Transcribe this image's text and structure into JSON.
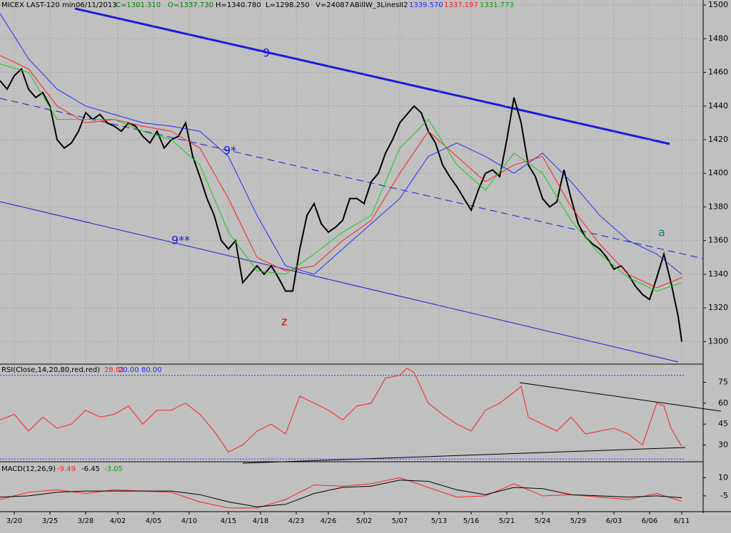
{
  "chart_data": [
    {
      "type": "line",
      "title": "MICEX LAST-120 min",
      "header": [
        "06/11/2013",
        "C=1301.310",
        "O=1337.730",
        "H=1340.780",
        "L=1298.250",
        "V=24087",
        "ABillW_3LinesII2",
        "1339.570",
        "1337.197",
        "1331.773"
      ],
      "annotations": [
        "9",
        "9*",
        "9**",
        "z",
        "a"
      ],
      "xlim": [
        0,
        197
      ],
      "xticks": [
        {
          "value": 4,
          "label": "3/20"
        },
        {
          "value": 14,
          "label": "3/25"
        },
        {
          "value": 24,
          "label": "3/28"
        },
        {
          "value": 33,
          "label": "4/02"
        },
        {
          "value": 43,
          "label": "4/05"
        },
        {
          "value": 53,
          "label": "4/10"
        },
        {
          "value": 64,
          "label": "4/15"
        },
        {
          "value": 73,
          "label": "4/18"
        },
        {
          "value": 83,
          "label": "4/23"
        },
        {
          "value": 92,
          "label": "4/26"
        },
        {
          "value": 102,
          "label": "5/02"
        },
        {
          "value": 112,
          "label": "5/07"
        },
        {
          "value": 123,
          "label": "5/13"
        },
        {
          "value": 132,
          "label": "5/16"
        },
        {
          "value": 142,
          "label": "5/21"
        },
        {
          "value": 152,
          "label": "5/24"
        },
        {
          "value": 162,
          "label": "5/29"
        },
        {
          "value": 172,
          "label": "6/03"
        },
        {
          "value": 182,
          "label": "6/06"
        },
        {
          "value": 191,
          "label": "6/11"
        }
      ],
      "ylim": [
        1287,
        1503
      ],
      "yticks": [
        1300,
        1320,
        1340,
        1360,
        1380,
        1400,
        1420,
        1440,
        1460,
        1480,
        1500
      ],
      "grid": true,
      "series": [
        {
          "color": "#000000",
          "width": 2,
          "x": [
            0,
            2,
            4,
            6,
            8,
            10,
            12,
            14,
            16,
            18,
            20,
            22,
            24,
            26,
            28,
            30,
            32,
            34,
            36,
            38,
            40,
            42,
            44,
            46,
            48,
            50,
            52,
            54,
            56,
            58,
            60,
            62,
            64,
            66,
            68,
            70,
            72,
            74,
            76,
            78,
            80,
            82,
            84,
            86,
            88,
            90,
            92,
            94,
            96,
            98,
            100,
            102,
            104,
            106,
            108,
            110,
            112,
            114,
            116,
            118,
            120,
            122,
            124,
            126,
            128,
            130,
            132,
            134,
            136,
            138,
            140,
            142,
            144,
            146,
            148,
            150,
            152,
            154,
            156,
            158,
            160,
            162,
            164,
            166,
            168,
            170,
            172,
            174,
            176,
            178,
            180,
            182,
            184,
            186,
            188,
            190,
            191
          ],
          "values": [
            1455,
            1450,
            1458,
            1462,
            1450,
            1445,
            1448,
            1440,
            1420,
            1415,
            1418,
            1425,
            1436,
            1432,
            1435,
            1430,
            1428,
            1425,
            1430,
            1428,
            1422,
            1418,
            1425,
            1415,
            1420,
            1422,
            1430,
            1410,
            1398,
            1385,
            1375,
            1360,
            1355,
            1360,
            1335,
            1340,
            1345,
            1340,
            1345,
            1338,
            1330,
            1330,
            1355,
            1375,
            1382,
            1370,
            1365,
            1368,
            1372,
            1385,
            1385,
            1382,
            1395,
            1400,
            1412,
            1420,
            1430,
            1435,
            1440,
            1436,
            1425,
            1418,
            1405,
            1398,
            1392,
            1385,
            1378,
            1390,
            1400,
            1402,
            1398,
            1420,
            1445,
            1430,
            1405,
            1398,
            1385,
            1380,
            1383,
            1402,
            1385,
            1370,
            1362,
            1358,
            1355,
            1350,
            1343,
            1345,
            1340,
            1333,
            1328,
            1325,
            1338,
            1352,
            1335,
            1315,
            1300
          ]
        },
        {
          "color": "#2a2aff",
          "width": 1,
          "x": [
            0,
            8,
            16,
            24,
            32,
            40,
            48,
            56,
            64,
            72,
            80,
            88,
            96,
            104,
            112,
            120,
            128,
            136,
            144,
            152,
            160,
            168,
            176,
            184,
            191
          ],
          "values": [
            1495,
            1468,
            1450,
            1440,
            1435,
            1430,
            1428,
            1425,
            1410,
            1375,
            1345,
            1340,
            1355,
            1370,
            1385,
            1410,
            1418,
            1410,
            1400,
            1412,
            1395,
            1375,
            1360,
            1352,
            1340
          ]
        },
        {
          "color": "#ff2020",
          "width": 1,
          "x": [
            0,
            8,
            16,
            24,
            32,
            40,
            48,
            56,
            64,
            72,
            80,
            88,
            96,
            104,
            112,
            120,
            128,
            136,
            144,
            152,
            160,
            168,
            176,
            184,
            191
          ],
          "values": [
            1470,
            1462,
            1440,
            1430,
            1432,
            1428,
            1425,
            1415,
            1385,
            1350,
            1342,
            1345,
            1360,
            1372,
            1400,
            1425,
            1410,
            1395,
            1405,
            1410,
            1380,
            1358,
            1340,
            1332,
            1338
          ]
        },
        {
          "color": "#10d010",
          "width": 1,
          "x": [
            0,
            8,
            16,
            24,
            32,
            40,
            48,
            56,
            64,
            72,
            80,
            88,
            96,
            104,
            112,
            120,
            128,
            136,
            144,
            152,
            160,
            168,
            176,
            184,
            191
          ],
          "values": [
            1465,
            1460,
            1432,
            1432,
            1432,
            1425,
            1420,
            1405,
            1365,
            1342,
            1340,
            1352,
            1365,
            1375,
            1415,
            1432,
            1405,
            1390,
            1412,
            1400,
            1372,
            1352,
            1338,
            1330,
            1335
          ]
        }
      ]
    },
    {
      "type": "line",
      "title": "RSI(Close,14,20,80,red,red)",
      "header": [
        "28.81",
        "20.00",
        "80.00"
      ],
      "xlim": [
        0,
        197
      ],
      "ylim": [
        18,
        87
      ],
      "yticks": [
        30,
        45,
        60,
        75
      ],
      "levels": [
        20,
        80
      ],
      "series": [
        {
          "color": "#ff2020",
          "width": 1,
          "x": [
            0,
            4,
            8,
            12,
            16,
            20,
            24,
            28,
            32,
            36,
            40,
            44,
            48,
            52,
            56,
            60,
            64,
            68,
            72,
            76,
            80,
            84,
            88,
            92,
            96,
            100,
            104,
            108,
            112,
            114,
            116,
            120,
            124,
            128,
            132,
            136,
            140,
            144,
            146,
            148,
            152,
            156,
            160,
            164,
            168,
            172,
            176,
            180,
            184,
            186,
            188,
            191
          ],
          "values": [
            48,
            52,
            40,
            50,
            42,
            45,
            55,
            50,
            52,
            58,
            45,
            55,
            55,
            60,
            52,
            40,
            25,
            30,
            40,
            45,
            38,
            65,
            60,
            55,
            48,
            58,
            60,
            78,
            80,
            85,
            82,
            60,
            52,
            45,
            40,
            55,
            60,
            68,
            72,
            50,
            45,
            40,
            50,
            38,
            40,
            42,
            38,
            30,
            60,
            58,
            42,
            29
          ]
        }
      ]
    },
    {
      "type": "line",
      "title": "MACD(12,26,9)",
      "header": [
        "-9.49",
        "-6.45",
        "-3.05"
      ],
      "xlim": [
        0,
        197
      ],
      "ylim": [
        -18,
        22
      ],
      "yticks": [
        -5,
        10
      ],
      "series": [
        {
          "color": "#ff2020",
          "width": 1,
          "x": [
            0,
            8,
            16,
            24,
            32,
            40,
            48,
            56,
            64,
            72,
            80,
            88,
            96,
            104,
            112,
            120,
            128,
            136,
            144,
            152,
            160,
            168,
            176,
            184,
            191
          ],
          "values": [
            -8,
            -2,
            0,
            -3,
            0,
            -1,
            -2,
            -10,
            -15,
            -15,
            -8,
            4,
            3,
            5,
            10,
            2,
            -6,
            -5,
            5,
            -5,
            -4,
            -6,
            -8,
            -3,
            -9.5
          ]
        },
        {
          "color": "#000000",
          "width": 1,
          "x": [
            0,
            8,
            16,
            24,
            32,
            40,
            48,
            56,
            64,
            72,
            80,
            88,
            96,
            104,
            112,
            120,
            128,
            136,
            144,
            152,
            160,
            168,
            176,
            184,
            191
          ],
          "values": [
            -6,
            -5,
            -2,
            -1,
            -1,
            -1,
            -1,
            -4,
            -10,
            -14,
            -12,
            -3,
            2,
            3,
            8,
            7,
            0,
            -4,
            2,
            1,
            -4,
            -5,
            -6,
            -5,
            -6.5
          ]
        }
      ]
    }
  ]
}
